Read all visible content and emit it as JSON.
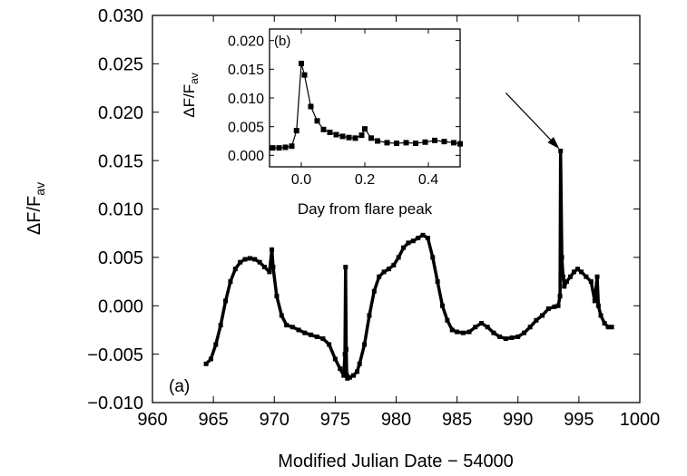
{
  "chart_data": [
    {
      "id": "main",
      "type": "line",
      "panel_label": "(a)",
      "xlabel": "Modified Julian Date − 54000",
      "ylabel_main": "ΔF/F",
      "ylabel_sub": "av",
      "xlim": [
        960,
        1000
      ],
      "ylim": [
        -0.01,
        0.03
      ],
      "x_ticks": [
        960,
        965,
        970,
        975,
        980,
        985,
        990,
        995,
        1000
      ],
      "x_tick_labels": [
        "960",
        "965",
        "970",
        "975",
        "980",
        "985",
        "990",
        "995",
        "1000"
      ],
      "y_ticks": [
        -0.01,
        -0.005,
        0.0,
        0.005,
        0.01,
        0.015,
        0.02,
        0.025,
        0.03
      ],
      "y_tick_labels": [
        "−0.010",
        "−0.005",
        "0.000",
        "0.005",
        "0.010",
        "0.015",
        "0.020",
        "0.025",
        "0.030"
      ],
      "grid": false,
      "series": [
        {
          "marker": "square",
          "color": "#000000",
          "x": [
            964.4,
            964.8,
            965.2,
            965.6,
            966.0,
            966.4,
            966.8,
            967.2,
            967.6,
            968.0,
            968.4,
            968.8,
            969.2,
            969.6,
            969.8,
            969.9,
            970.2,
            970.6,
            971.0,
            971.5,
            972.0,
            972.5,
            973.0,
            973.5,
            974.0,
            974.5,
            975.0,
            975.4,
            975.7,
            975.8,
            975.85,
            975.9,
            975.95,
            976.0,
            976.2,
            976.5,
            976.8,
            977.0,
            977.4,
            977.8,
            978.2,
            978.6,
            979.0,
            979.4,
            979.8,
            980.2,
            980.6,
            981.0,
            981.4,
            981.8,
            982.2,
            982.6,
            983.0,
            983.4,
            983.8,
            984.2,
            984.6,
            985.0,
            985.5,
            986.0,
            986.5,
            987.0,
            987.5,
            988.0,
            988.5,
            989.0,
            989.5,
            990.0,
            990.5,
            991.0,
            991.5,
            992.0,
            992.5,
            993.0,
            993.3,
            993.45,
            993.5,
            993.6,
            993.7,
            993.8,
            994.0,
            994.3,
            994.6,
            994.9,
            995.2,
            995.6,
            996.0,
            996.3,
            996.5,
            996.6,
            996.8,
            997.1,
            997.4,
            997.7
          ],
          "y": [
            -0.006,
            -0.0055,
            -0.004,
            -0.002,
            0.0005,
            0.0025,
            0.0038,
            0.0045,
            0.0048,
            0.0049,
            0.0048,
            0.0045,
            0.004,
            0.0035,
            0.0058,
            0.004,
            0.001,
            -0.001,
            -0.002,
            -0.0022,
            -0.0025,
            -0.0028,
            -0.003,
            -0.0032,
            -0.0034,
            -0.004,
            -0.0055,
            -0.0065,
            -0.0072,
            -0.005,
            0.004,
            -0.0045,
            -0.0072,
            -0.0075,
            -0.0074,
            -0.0072,
            -0.0068,
            -0.006,
            -0.004,
            -0.001,
            0.0015,
            0.003,
            0.0035,
            0.0038,
            0.0042,
            0.005,
            0.006,
            0.0065,
            0.0067,
            0.007,
            0.0073,
            0.007,
            0.005,
            0.0025,
            0.0,
            -0.0015,
            -0.0025,
            -0.0027,
            -0.0028,
            -0.0027,
            -0.0022,
            -0.0018,
            -0.0022,
            -0.0028,
            -0.0032,
            -0.0034,
            -0.0033,
            -0.0032,
            -0.0028,
            -0.0022,
            -0.0015,
            -0.001,
            -0.0003,
            -0.0001,
            0.0,
            0.001,
            0.016,
            0.005,
            0.003,
            0.002,
            0.0025,
            0.003,
            0.0035,
            0.0038,
            0.0035,
            0.003,
            0.0025,
            0.0005,
            0.003,
            0.0,
            -0.001,
            -0.0018,
            -0.0022,
            -0.0022
          ]
        }
      ],
      "annotation_arrow": {
        "from": [
          989.0,
          0.022
        ],
        "to": [
          993.4,
          0.0162
        ]
      }
    },
    {
      "id": "inset",
      "type": "line",
      "panel_label": "(b)",
      "xlabel": "Day from flare peak",
      "ylabel_main": "ΔF/F",
      "ylabel_sub": "av",
      "xlim": [
        -0.1,
        0.5
      ],
      "ylim": [
        -0.002,
        0.022
      ],
      "x_ticks": [
        0.0,
        0.2,
        0.4
      ],
      "x_tick_labels": [
        "0.0",
        "0.2",
        "0.4"
      ],
      "y_ticks": [
        0.0,
        0.005,
        0.01,
        0.015,
        0.02
      ],
      "y_tick_labels": [
        "0.000",
        "0.005",
        "0.010",
        "0.015",
        "0.020"
      ],
      "grid": false,
      "series": [
        {
          "marker": "square",
          "color": "#000000",
          "x": [
            -0.09,
            -0.07,
            -0.05,
            -0.03,
            -0.015,
            0.0,
            0.01,
            0.03,
            0.05,
            0.07,
            0.09,
            0.11,
            0.13,
            0.15,
            0.17,
            0.19,
            0.2,
            0.22,
            0.24,
            0.27,
            0.3,
            0.33,
            0.36,
            0.39,
            0.42,
            0.45,
            0.48,
            0.5
          ],
          "y": [
            0.0013,
            0.0013,
            0.0014,
            0.0016,
            0.0043,
            0.016,
            0.014,
            0.0085,
            0.006,
            0.0045,
            0.004,
            0.0036,
            0.0033,
            0.0031,
            0.003,
            0.0035,
            0.0046,
            0.003,
            0.0025,
            0.0022,
            0.0021,
            0.0022,
            0.0021,
            0.0023,
            0.0026,
            0.0024,
            0.0022,
            0.002
          ]
        }
      ]
    }
  ]
}
